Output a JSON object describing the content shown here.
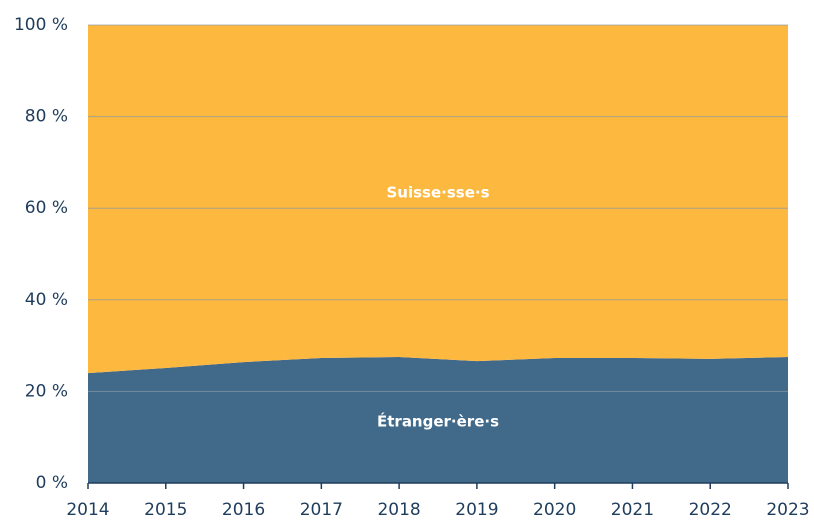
{
  "chart_data": {
    "type": "area",
    "stacked": true,
    "categories": [
      "2014",
      "2015",
      "2016",
      "2017",
      "2018",
      "2019",
      "2020",
      "2021",
      "2022",
      "2023"
    ],
    "series": [
      {
        "name": "Étranger·ère·s",
        "color": "#41698a",
        "values": [
          24.0,
          25.1,
          26.4,
          27.3,
          27.5,
          26.6,
          27.3,
          27.3,
          27.1,
          27.5
        ]
      },
      {
        "name": "Suisse·sse·s",
        "color": "#fdb83f",
        "values": [
          76.0,
          74.9,
          73.6,
          72.7,
          72.5,
          73.4,
          72.7,
          72.7,
          72.9,
          72.5
        ]
      }
    ],
    "ylim": [
      0,
      100
    ],
    "yticks": [
      {
        "value": 0,
        "label": "0 %"
      },
      {
        "value": 20,
        "label": "20 %"
      },
      {
        "value": 40,
        "label": "40 %"
      },
      {
        "value": 60,
        "label": "60 %"
      },
      {
        "value": 80,
        "label": "80 %"
      },
      {
        "value": 100,
        "label": "100 %"
      }
    ],
    "grid": true
  }
}
